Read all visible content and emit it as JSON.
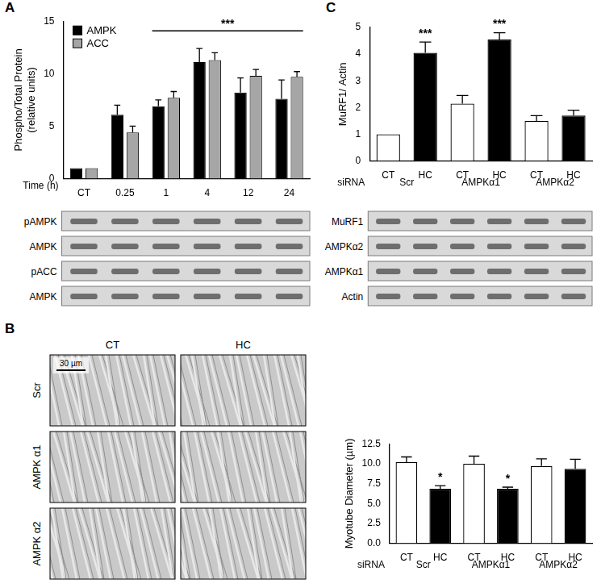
{
  "chart_data": [
    {
      "type": "bar",
      "ylabel": [
        "Phospho/Total Protein",
        "(relative units)"
      ],
      "xlabel": "Time (h)",
      "categories": [
        "CT",
        "0.25",
        "1",
        "4",
        "12",
        "24"
      ],
      "series": [
        {
          "name": "AMPK",
          "color": "#000000",
          "values": [
            1,
            6.1,
            6.9,
            11.1,
            8.2,
            7.6
          ],
          "errors": [
            0,
            0.9,
            0.6,
            1.3,
            1.4,
            1.8
          ]
        },
        {
          "name": "ACC",
          "color": "#a6a6a6",
          "values": [
            1,
            4.4,
            7.7,
            11.3,
            9.8,
            9.7
          ],
          "errors": [
            0,
            0.6,
            0.6,
            0.7,
            0.6,
            0.5
          ]
        }
      ],
      "ylim": [
        0,
        15
      ],
      "yticks": [
        0,
        5,
        10,
        15
      ],
      "grid": false,
      "legend": "top-left",
      "annotations": [
        {
          "text": "***",
          "from": "1",
          "to": "24"
        }
      ]
    },
    {
      "type": "bar",
      "ylabel": "MuRF1/ Actin",
      "categories": [
        "CT",
        "HC",
        "CT",
        "HC",
        "CT",
        "HC"
      ],
      "group_title": "siRNA",
      "groups": [
        "Scr",
        "AMPKα1",
        "AMPKα2"
      ],
      "values": [
        1,
        4.05,
        2.15,
        4.55,
        1.5,
        1.7
      ],
      "errors": [
        0,
        0.4,
        0.3,
        0.25,
        0.2,
        0.2
      ],
      "colors": [
        "#ffffff",
        "#000000",
        "#ffffff",
        "#000000",
        "#ffffff",
        "#000000"
      ],
      "ylim": [
        0,
        5
      ],
      "yticks": [
        0,
        1,
        2,
        3,
        4,
        5
      ],
      "grid": false,
      "annotations": [
        {
          "text": "***",
          "index": 1
        },
        {
          "text": "***",
          "index": 3
        }
      ]
    },
    {
      "type": "bar",
      "ylabel": "Myotube Diameter (µm)",
      "categories": [
        "CT",
        "HC",
        "CT",
        "HC",
        "CT",
        "HC"
      ],
      "group_title": "siRNA",
      "groups": [
        "Scr",
        "AMPKα1",
        "AMPKα2"
      ],
      "values": [
        10.2,
        6.85,
        10.0,
        6.85,
        9.7,
        9.35
      ],
      "errors": [
        0.65,
        0.4,
        0.95,
        0.2,
        0.9,
        1.2
      ],
      "colors": [
        "#ffffff",
        "#000000",
        "#ffffff",
        "#000000",
        "#ffffff",
        "#000000"
      ],
      "ylim": [
        0,
        12.5
      ],
      "yticks": [
        {
          "value": 0,
          "label": "0.0"
        },
        2.5,
        {
          "value": 5,
          "label": "5.0"
        },
        7.5,
        {
          "value": 10,
          "label": "10.0"
        },
        12.5
      ],
      "grid": false,
      "annotations": [
        {
          "text": "*",
          "index": 1
        },
        {
          "text": "*",
          "index": 3
        }
      ]
    }
  ],
  "panels": [
    "A",
    "B",
    "C"
  ],
  "blots": {
    "A": [
      "pAMPK",
      "AMPK",
      "pACC",
      "AMPK"
    ],
    "C": [
      "MuRF1",
      "AMPKα2",
      "AMPKα1",
      "Actin"
    ]
  },
  "micrographs": {
    "columns": [
      "CT",
      "HC"
    ],
    "rows": [
      "Scr",
      "AMPK α1",
      "AMPK α2"
    ],
    "scale_bar": "30 µm"
  }
}
